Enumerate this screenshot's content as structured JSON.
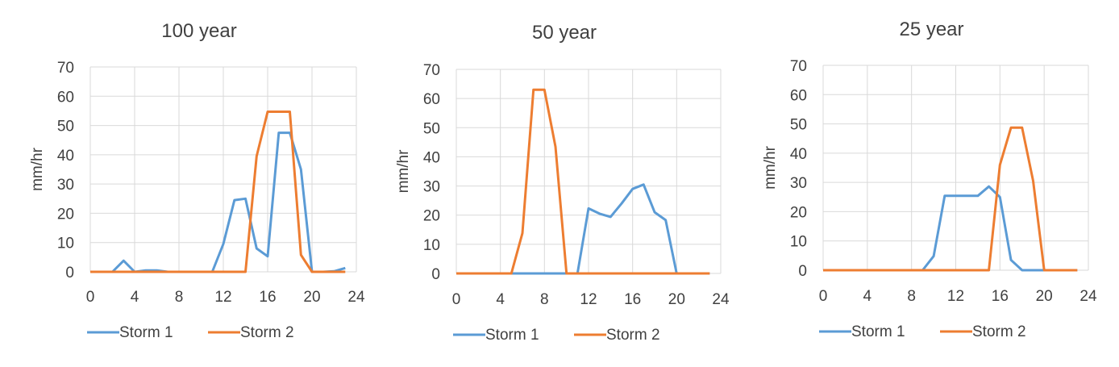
{
  "colors": {
    "storm1": "#5b9bd5",
    "storm2": "#ed7d31",
    "grid": "#d9d9d9",
    "text": "#404040"
  },
  "chart_data": [
    {
      "type": "line",
      "title": "100 year",
      "ylabel": "mm/hr",
      "xlim": [
        0,
        24
      ],
      "ylim": [
        0,
        70
      ],
      "xticks": [
        0,
        4,
        8,
        12,
        16,
        20,
        24
      ],
      "yticks": [
        0,
        10,
        20,
        30,
        40,
        50,
        60,
        70
      ],
      "legend": "bottom",
      "grid": true,
      "series": [
        {
          "name": "Storm 1",
          "color": "#5b9bd5",
          "x": [
            0,
            1,
            2,
            3,
            4,
            5,
            6,
            7,
            8,
            9,
            10,
            11,
            12,
            13,
            14,
            15,
            16,
            17,
            18,
            19,
            20,
            21,
            22,
            23
          ],
          "y": [
            0,
            0,
            0,
            3.8,
            0,
            0.5,
            0.5,
            0,
            0,
            0,
            0,
            0,
            9.5,
            24.5,
            25,
            8,
            5.3,
            47.5,
            47.5,
            35,
            0,
            0,
            0.2,
            1.3
          ]
        },
        {
          "name": "Storm 2",
          "color": "#ed7d31",
          "x": [
            0,
            1,
            2,
            3,
            4,
            5,
            6,
            7,
            8,
            9,
            10,
            11,
            12,
            13,
            14,
            15,
            16,
            17,
            18,
            19,
            20,
            21,
            22,
            23
          ],
          "y": [
            0,
            0,
            0,
            0,
            0,
            0,
            0,
            0,
            0,
            0,
            0,
            0,
            0,
            0,
            0,
            39.5,
            54.7,
            54.7,
            54.7,
            5.8,
            0,
            0,
            0,
            0
          ]
        }
      ]
    },
    {
      "type": "line",
      "title": "50 year",
      "ylabel": "mm/hr",
      "xlim": [
        0,
        24
      ],
      "ylim": [
        0,
        70
      ],
      "xticks": [
        0,
        4,
        8,
        12,
        16,
        20,
        24
      ],
      "yticks": [
        0,
        10,
        20,
        30,
        40,
        50,
        60,
        70
      ],
      "legend": "bottom",
      "grid": true,
      "series": [
        {
          "name": "Storm 1",
          "color": "#5b9bd5",
          "x": [
            0,
            1,
            2,
            3,
            4,
            5,
            6,
            7,
            8,
            9,
            10,
            11,
            12,
            13,
            14,
            15,
            16,
            17,
            18,
            19,
            20,
            21,
            22,
            23
          ],
          "y": [
            0,
            0,
            0,
            0,
            0,
            0,
            0,
            0,
            0,
            0,
            0,
            0,
            22.3,
            20.5,
            19.4,
            24,
            29,
            30.5,
            21,
            18.3,
            0,
            0,
            0,
            0
          ]
        },
        {
          "name": "Storm 2",
          "color": "#ed7d31",
          "x": [
            0,
            1,
            2,
            3,
            4,
            5,
            6,
            7,
            8,
            9,
            10,
            11,
            12,
            13,
            14,
            15,
            16,
            17,
            18,
            19,
            20,
            21,
            22,
            23
          ],
          "y": [
            0,
            0,
            0,
            0,
            0,
            0,
            13.8,
            63,
            63,
            43.5,
            0,
            0,
            0,
            0,
            0,
            0,
            0,
            0,
            0,
            0,
            0,
            0,
            0,
            0
          ]
        }
      ]
    },
    {
      "type": "line",
      "title": "25 year",
      "ylabel": "mm/hr",
      "xlim": [
        0,
        24
      ],
      "ylim": [
        0,
        70
      ],
      "xticks": [
        0,
        4,
        8,
        12,
        16,
        20,
        24
      ],
      "yticks": [
        0,
        10,
        20,
        30,
        40,
        50,
        60,
        70
      ],
      "legend": "bottom",
      "grid": true,
      "series": [
        {
          "name": "Storm 1",
          "color": "#5b9bd5",
          "x": [
            0,
            1,
            2,
            3,
            4,
            5,
            6,
            7,
            8,
            9,
            10,
            11,
            12,
            13,
            14,
            15,
            16,
            17,
            18,
            19,
            20,
            21,
            22,
            23
          ],
          "y": [
            0,
            0,
            0,
            0,
            0,
            0,
            0,
            0,
            0,
            0,
            4.8,
            25.4,
            25.4,
            25.4,
            25.4,
            28.6,
            25,
            3.5,
            0,
            0,
            0,
            0,
            0,
            0
          ]
        },
        {
          "name": "Storm 2",
          "color": "#ed7d31",
          "x": [
            0,
            1,
            2,
            3,
            4,
            5,
            6,
            7,
            8,
            9,
            10,
            11,
            12,
            13,
            14,
            15,
            16,
            17,
            18,
            19,
            20,
            21,
            22,
            23
          ],
          "y": [
            0,
            0,
            0,
            0,
            0,
            0,
            0,
            0,
            0,
            0,
            0,
            0,
            0,
            0,
            0,
            0,
            36,
            48.7,
            48.7,
            30.5,
            0,
            0,
            0,
            0
          ]
        }
      ]
    }
  ]
}
